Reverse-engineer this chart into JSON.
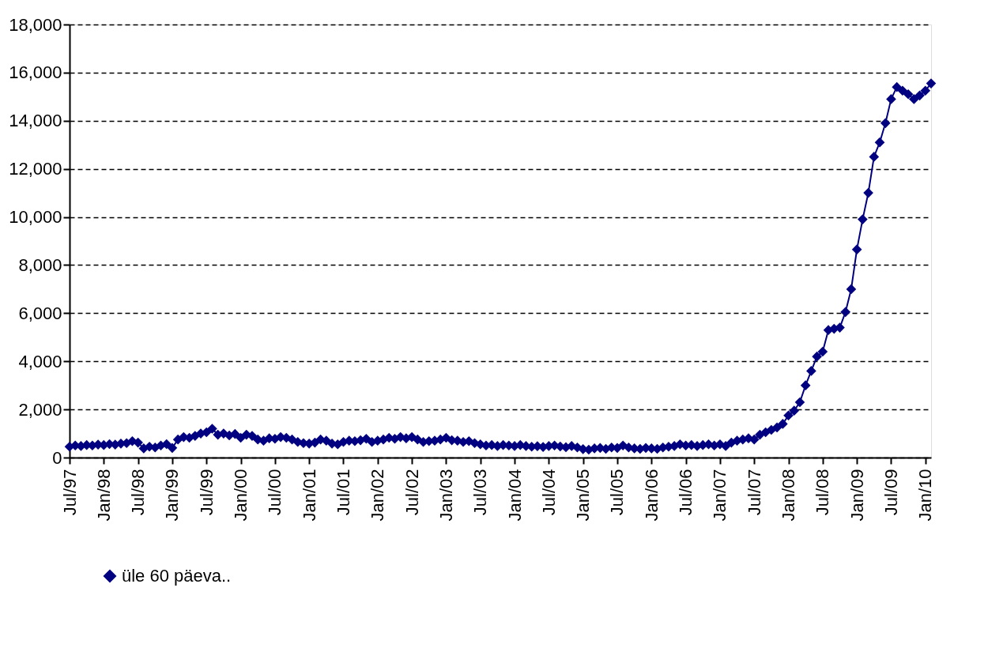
{
  "chart_data": {
    "type": "line",
    "categories": [
      "Jul/97",
      null,
      null,
      null,
      null,
      null,
      "Jan/98",
      null,
      null,
      null,
      null,
      null,
      "Jul/98",
      null,
      null,
      null,
      null,
      null,
      "Jan/99",
      null,
      null,
      null,
      null,
      null,
      "Jul/99",
      null,
      null,
      null,
      null,
      null,
      "Jan/00",
      null,
      null,
      null,
      null,
      null,
      "Jul/00",
      null,
      null,
      null,
      null,
      null,
      "Jan/01",
      null,
      null,
      null,
      null,
      null,
      "Jul/01",
      null,
      null,
      null,
      null,
      null,
      "Jan/02",
      null,
      null,
      null,
      null,
      null,
      "Jul/02",
      null,
      null,
      null,
      null,
      null,
      "Jan/03",
      null,
      null,
      null,
      null,
      null,
      "Jul/03",
      null,
      null,
      null,
      null,
      null,
      "Jan/04",
      null,
      null,
      null,
      null,
      null,
      "Jul/04",
      null,
      null,
      null,
      null,
      null,
      "Jan/05",
      null,
      null,
      null,
      null,
      null,
      "Jul/05",
      null,
      null,
      null,
      null,
      null,
      "Jan/06",
      null,
      null,
      null,
      null,
      null,
      "Jul/06",
      null,
      null,
      null,
      null,
      null,
      "Jan/07",
      null,
      null,
      null,
      null,
      null,
      "Jul/07",
      null,
      null,
      null,
      null,
      null,
      "Jan/08",
      null,
      null,
      null,
      null,
      null,
      "Jul/08",
      null,
      null,
      null,
      null,
      null,
      "Jan/09",
      null,
      null,
      null,
      null,
      null,
      "Jul/09",
      null,
      null,
      null,
      null,
      null,
      "Jan/10",
      null
    ],
    "series": [
      {
        "name": "üle 60 päeva..",
        "color": "#000080",
        "values": [
          450,
          500,
          480,
          520,
          500,
          540,
          520,
          560,
          540,
          580,
          600,
          680,
          620,
          380,
          450,
          420,
          500,
          560,
          400,
          750,
          850,
          820,
          900,
          1000,
          1050,
          1200,
          950,
          1000,
          920,
          980,
          820,
          950,
          900,
          750,
          700,
          800,
          780,
          850,
          820,
          750,
          650,
          600,
          580,
          620,
          750,
          700,
          580,
          550,
          650,
          700,
          680,
          720,
          780,
          650,
          700,
          750,
          820,
          780,
          850,
          800,
          850,
          750,
          650,
          680,
          700,
          750,
          820,
          720,
          700,
          650,
          680,
          600,
          550,
          500,
          520,
          480,
          520,
          500,
          480,
          520,
          480,
          450,
          470,
          440,
          480,
          500,
          460,
          430,
          480,
          420,
          350,
          330,
          380,
          400,
          360,
          420,
          400,
          500,
          420,
          380,
          360,
          400,
          380,
          360,
          420,
          450,
          480,
          550,
          500,
          520,
          480,
          520,
          550,
          500,
          550,
          480,
          620,
          700,
          750,
          800,
          750,
          950,
          1050,
          1150,
          1250,
          1400,
          1750,
          1950,
          2300,
          3000,
          3600,
          4200,
          4400,
          5300,
          5350,
          5400,
          6050,
          7000,
          8650,
          9900,
          11000,
          12500,
          13100,
          13900,
          14900,
          15400,
          15250,
          15100,
          14900,
          15050,
          15250,
          15550
        ]
      }
    ],
    "ylim": [
      0,
      18000
    ],
    "yticks": [
      0,
      {
        "value": 2000,
        "label": "2,000"
      },
      {
        "value": 4000,
        "label": "4,000"
      },
      {
        "value": 6000,
        "label": "6,000"
      },
      {
        "value": 8000,
        "label": "8,000"
      },
      {
        "value": 10000,
        "label": "10,000"
      },
      {
        "value": 12000,
        "label": "12,000"
      },
      {
        "value": 14000,
        "label": "14,000"
      },
      {
        "value": 16000,
        "label": "16,000"
      },
      {
        "value": 18000,
        "label": "18,000"
      }
    ],
    "grid": "y",
    "legend": "bottom",
    "marker": "diamond",
    "line_style": "solid"
  }
}
